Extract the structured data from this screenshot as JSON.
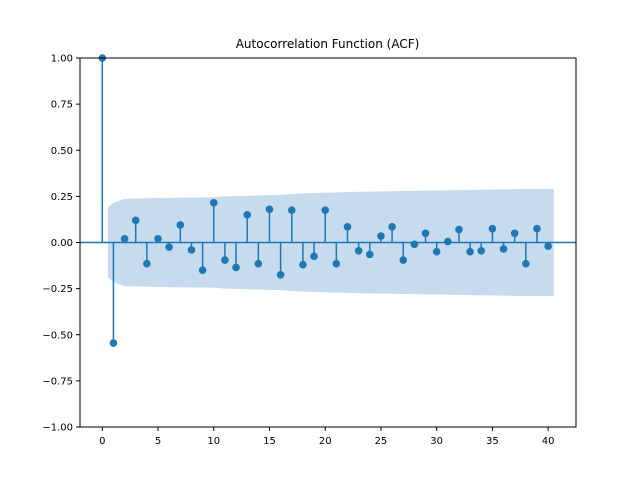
{
  "chart_data": {
    "type": "stem",
    "title": "Autocorrelation Function (ACF)",
    "xlabel": "",
    "ylabel": "",
    "xlim": [
      -2,
      42.5
    ],
    "ylim": [
      -1.0,
      1.0
    ],
    "x_ticks": [
      0,
      5,
      10,
      15,
      20,
      25,
      30,
      35,
      40
    ],
    "y_ticks": [
      1.0,
      0.75,
      0.5,
      0.25,
      0.0,
      -0.25,
      -0.5,
      -0.75,
      -1.0
    ],
    "x_tick_labels": [
      "0",
      "5",
      "10",
      "15",
      "20",
      "25",
      "30",
      "35",
      "40"
    ],
    "y_tick_labels": [
      "1.00",
      "0.75",
      "0.50",
      "0.25",
      "0.00",
      "−0.25",
      "−0.50",
      "−0.75",
      "−1.00"
    ],
    "lags": [
      0,
      1,
      2,
      3,
      4,
      5,
      6,
      7,
      8,
      9,
      10,
      11,
      12,
      13,
      14,
      15,
      16,
      17,
      18,
      19,
      20,
      21,
      22,
      23,
      24,
      25,
      26,
      27,
      28,
      29,
      30,
      31,
      32,
      33,
      34,
      35,
      36,
      37,
      38,
      39,
      40
    ],
    "values": [
      1.0,
      -0.545,
      0.02,
      0.12,
      -0.115,
      0.02,
      -0.025,
      0.095,
      -0.04,
      -0.15,
      0.215,
      -0.095,
      -0.135,
      0.15,
      -0.115,
      0.18,
      -0.175,
      0.175,
      -0.12,
      -0.075,
      0.175,
      -0.115,
      0.085,
      -0.045,
      -0.065,
      0.035,
      0.085,
      -0.095,
      -0.01,
      0.05,
      -0.05,
      0.005,
      0.07,
      -0.05,
      -0.045,
      0.075,
      -0.035,
      0.05,
      -0.115,
      0.075,
      -0.02
    ],
    "confidence_band": {
      "lags": [
        0.5,
        1,
        2,
        3,
        4,
        5,
        6,
        7,
        8,
        9,
        10,
        11,
        12,
        13,
        14,
        15,
        16,
        17,
        18,
        19,
        20,
        21,
        22,
        23,
        24,
        25,
        26,
        27,
        28,
        29,
        30,
        31,
        32,
        33,
        34,
        35,
        36,
        37,
        38,
        39,
        40.5
      ],
      "upper": [
        0.19,
        0.215,
        0.237,
        0.238,
        0.24,
        0.241,
        0.242,
        0.243,
        0.244,
        0.244,
        0.245,
        0.25,
        0.252,
        0.253,
        0.255,
        0.257,
        0.258,
        0.263,
        0.266,
        0.268,
        0.27,
        0.272,
        0.273,
        0.275,
        0.276,
        0.277,
        0.278,
        0.279,
        0.28,
        0.281,
        0.282,
        0.283,
        0.284,
        0.285,
        0.286,
        0.287,
        0.288,
        0.289,
        0.29,
        0.29,
        0.29
      ],
      "lower": [
        -0.19,
        -0.215,
        -0.237,
        -0.238,
        -0.24,
        -0.241,
        -0.242,
        -0.243,
        -0.244,
        -0.244,
        -0.245,
        -0.25,
        -0.252,
        -0.253,
        -0.255,
        -0.257,
        -0.258,
        -0.263,
        -0.266,
        -0.268,
        -0.27,
        -0.272,
        -0.273,
        -0.275,
        -0.276,
        -0.277,
        -0.278,
        -0.279,
        -0.28,
        -0.281,
        -0.282,
        -0.283,
        -0.284,
        -0.285,
        -0.286,
        -0.287,
        -0.288,
        -0.289,
        -0.29,
        -0.29,
        -0.29
      ]
    },
    "colors": {
      "stem": "#1f77b4",
      "band": "#c6dbed",
      "axes": "#000000"
    },
    "grid": false,
    "legend": "none"
  }
}
